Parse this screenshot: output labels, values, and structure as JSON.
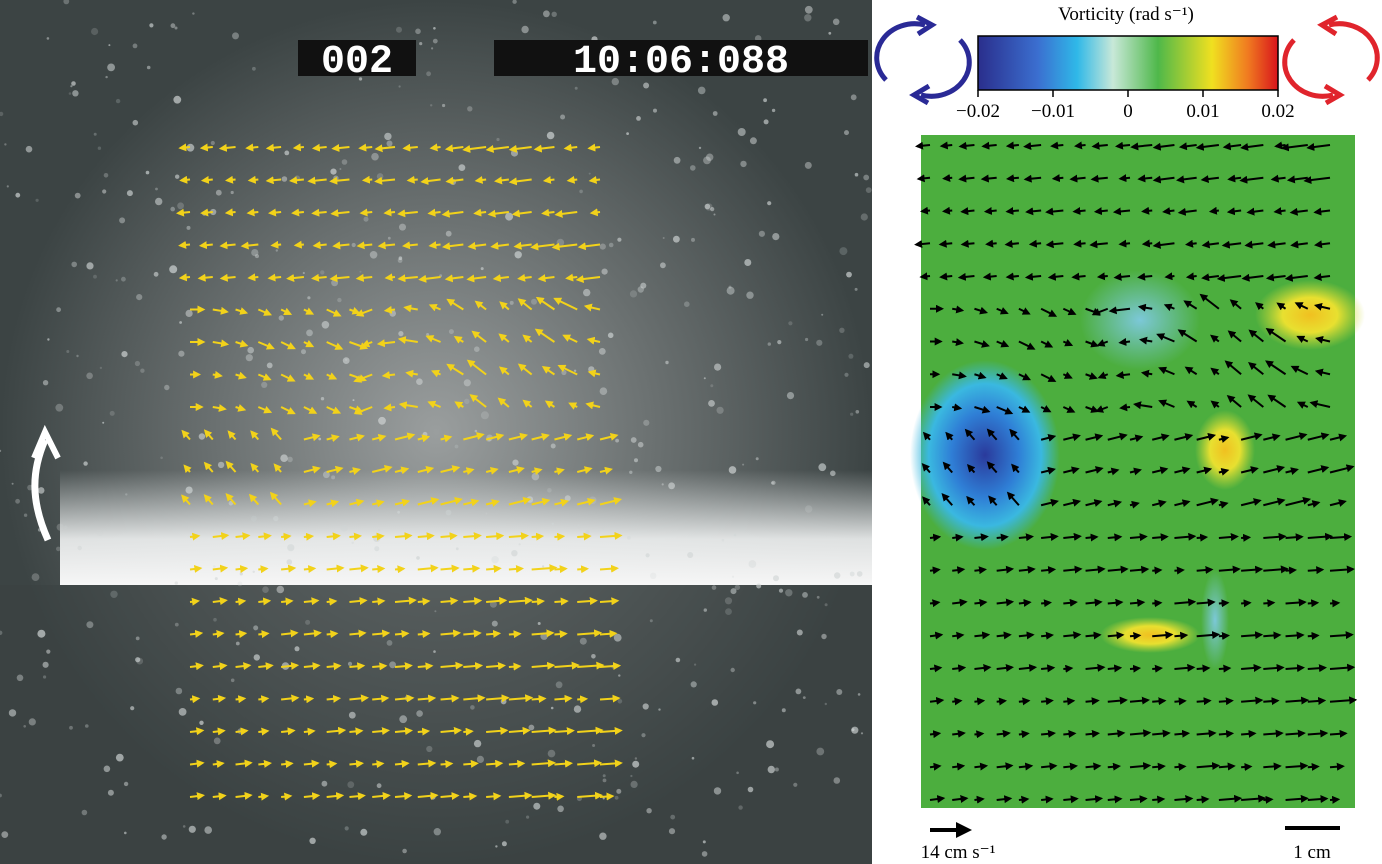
{
  "left_panel": {
    "frame_counter": "002",
    "timecode": "10:06:088"
  },
  "colorbar": {
    "title": "Vorticity (rad s⁻¹)",
    "tick_labels": [
      "−0.02",
      "−0.01",
      "0",
      "0.01",
      "0.02"
    ]
  },
  "scale": {
    "velocity_label": "14 cm s⁻¹",
    "length_label": "1 cm"
  }
}
